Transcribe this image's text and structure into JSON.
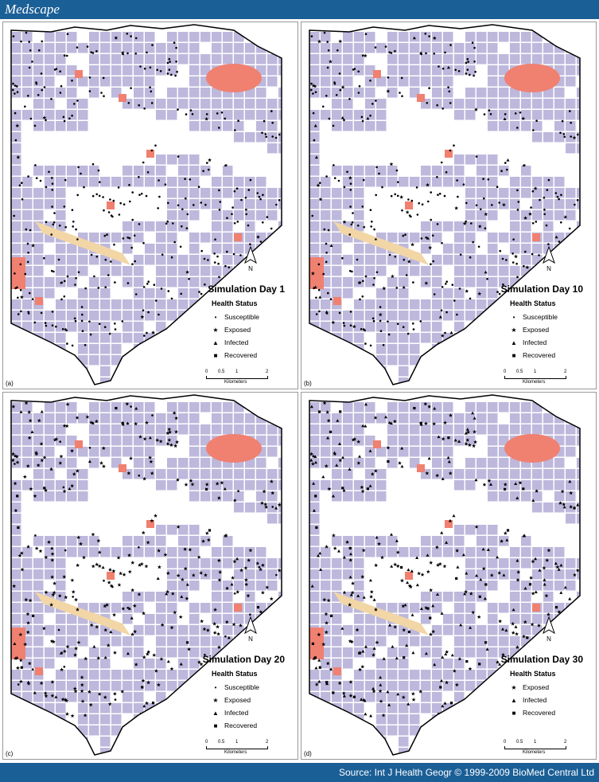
{
  "header": {
    "logo": "Medscape"
  },
  "footer": {
    "source": "Source: Int J Health Geogr © 1999-2009 BioMed Central Ltd"
  },
  "colors": {
    "header": "#1b5f97",
    "blocks": "#bdb8dc",
    "parks": "#f08070",
    "sand": "#f2d6a6"
  },
  "legend_title": "Health Status",
  "north_label": "N",
  "scale": {
    "ticks": [
      "0",
      "0.5",
      "1",
      "2"
    ],
    "unit": "Kilometers"
  },
  "panels": [
    {
      "label": "(a)",
      "title": "Simulation Day 1",
      "statuses": [
        {
          "name": "Susceptible",
          "icon": "dot"
        },
        {
          "name": "Exposed",
          "icon": "star"
        },
        {
          "name": "Infected",
          "icon": "triangle"
        },
        {
          "name": "Recovered",
          "icon": "square"
        }
      ],
      "mix": {
        "dot": 0.97,
        "star": 0.03,
        "triangle": 0,
        "square": 0
      }
    },
    {
      "label": "(b)",
      "title": "Simulation Day 10",
      "statuses": [
        {
          "name": "Susceptible",
          "icon": "dot"
        },
        {
          "name": "Exposed",
          "icon": "star"
        },
        {
          "name": "Infected",
          "icon": "triangle"
        },
        {
          "name": "Recovered",
          "icon": "square"
        }
      ],
      "mix": {
        "dot": 0.8,
        "star": 0.15,
        "triangle": 0.05,
        "square": 0
      }
    },
    {
      "label": "(c)",
      "title": "Simulation Day 20",
      "statuses": [
        {
          "name": "Susceptible",
          "icon": "dot"
        },
        {
          "name": "Exposed",
          "icon": "star"
        },
        {
          "name": "Infected",
          "icon": "triangle"
        },
        {
          "name": "Recovered",
          "icon": "square"
        }
      ],
      "mix": {
        "dot": 0.05,
        "star": 0.8,
        "triangle": 0.12,
        "square": 0.03
      }
    },
    {
      "label": "(d)",
      "title": "Simulation Day 30",
      "statuses": [
        {
          "name": "Exposed",
          "icon": "star"
        },
        {
          "name": "Infected",
          "icon": "triangle"
        },
        {
          "name": "Recovered",
          "icon": "square"
        }
      ],
      "mix": {
        "dot": 0,
        "star": 0.45,
        "triangle": 0.45,
        "square": 0.1
      }
    }
  ]
}
